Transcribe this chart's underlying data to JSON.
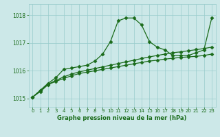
{
  "title": "Graphe pression niveau de la mer (hPa)",
  "bg_color": "#cce8e8",
  "grid_color": "#99cccc",
  "line_color": "#1a6b1a",
  "xlim": [
    -0.5,
    23.5
  ],
  "ylim": [
    1014.7,
    1018.4
  ],
  "yticks": [
    1015,
    1016,
    1017,
    1018
  ],
  "xticks": [
    0,
    1,
    2,
    3,
    4,
    5,
    6,
    7,
    8,
    9,
    10,
    11,
    12,
    13,
    14,
    15,
    16,
    17,
    18,
    19,
    20,
    21,
    22,
    23
  ],
  "series": [
    [
      1015.05,
      1015.25,
      1015.5,
      1015.62,
      1015.72,
      1015.82,
      1015.9,
      1015.95,
      1016.0,
      1016.05,
      1016.1,
      1016.15,
      1016.2,
      1016.25,
      1016.3,
      1016.35,
      1016.38,
      1016.42,
      1016.45,
      1016.48,
      1016.5,
      1016.52,
      1016.55,
      1016.6
    ],
    [
      1015.05,
      1015.28,
      1015.52,
      1015.65,
      1015.78,
      1015.88,
      1015.96,
      1016.02,
      1016.08,
      1016.14,
      1016.2,
      1016.26,
      1016.32,
      1016.38,
      1016.44,
      1016.5,
      1016.55,
      1016.6,
      1016.65,
      1016.68,
      1016.72,
      1016.76,
      1016.8,
      1016.85
    ],
    [
      1015.05,
      1015.3,
      1015.55,
      1015.75,
      1016.05,
      1016.1,
      1016.15,
      1016.2,
      1016.35,
      1016.6,
      1017.05,
      1017.8,
      1017.9,
      1017.9,
      1017.65,
      1017.05,
      1016.85,
      1016.75,
      1016.55,
      1016.55,
      1016.55,
      1016.65,
      1016.75,
      1017.9
    ]
  ],
  "marker": "D",
  "markersize": 2.5,
  "linewidth": 0.9
}
